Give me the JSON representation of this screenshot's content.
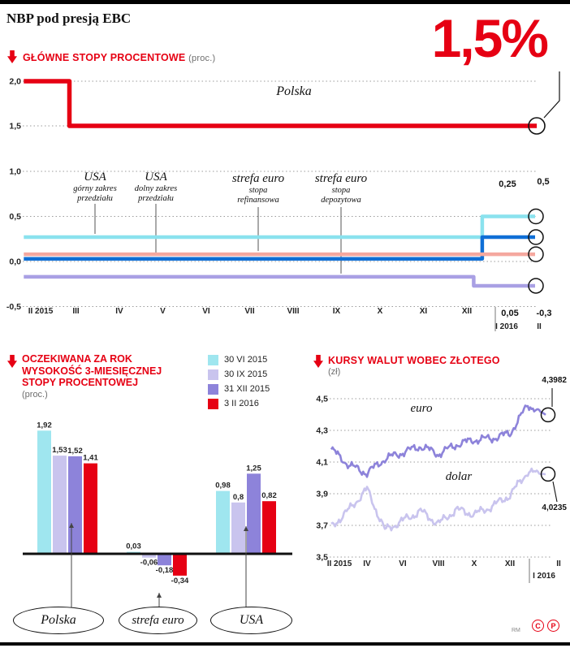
{
  "header": {
    "title": "NBP pod presją EBC",
    "big_rate": "1,5%"
  },
  "rates_section": {
    "heading": "GŁÓWNE STOPY PROCENTOWE",
    "unit": "(proc.)"
  },
  "expectations_section": {
    "heading_lines": [
      "OCZEKIWANA ZA ROK",
      "WYSOKOŚĆ 3-MIESIĘCZNEJ",
      "STOPY PROCENTOWEJ"
    ],
    "unit": "(proc.)"
  },
  "currency_section": {
    "heading": "KURSY WALUT WOBEC ZŁOTEGO",
    "unit": "(zł)"
  },
  "footer": {
    "credit": "RM",
    "copyright_c": "C",
    "copyright_p": "P"
  },
  "chart_data": [
    {
      "id": "polska_rate",
      "type": "line",
      "title": "GŁÓWNE STOPY PROCENTOWE (proc.)",
      "series_name": "Polska",
      "color": "#e60013",
      "yticks": [
        "2,0",
        "1,5"
      ],
      "ytick_values": [
        2.0,
        1.5
      ],
      "x_range": [
        "II 2015",
        "II 2016"
      ],
      "values": {
        "start": 2.0,
        "after_march_2015": 1.5
      },
      "plot": [
        [
          -0.2,
          2.0
        ],
        [
          0.85,
          2.0
        ],
        [
          0.85,
          1.5
        ],
        [
          12.05,
          1.5
        ]
      ],
      "end_label": "1,5%"
    },
    {
      "id": "foreign_rates",
      "type": "line",
      "yticks": [
        "1,0",
        "0,5",
        "0,0",
        "-0,5"
      ],
      "ytick_values": [
        1.0,
        0.5,
        0.0,
        -0.5
      ],
      "x_labels": [
        "II 2015",
        "III",
        "IV",
        "V",
        "VI",
        "VII",
        "VIII",
        "IX",
        "X",
        "XI",
        "XII"
      ],
      "x_labels_row2": [
        "I 2016",
        "II"
      ],
      "series": [
        {
          "title": "USA",
          "sub": "górny zakres przedziału",
          "color": "#8ae2ee",
          "values": {
            "before": 0.25,
            "after": 0.5
          },
          "plot": [
            [
              -0.2,
              0.27
            ],
            [
              10.45,
              0.27
            ],
            [
              10.45,
              0.5
            ],
            [
              12,
              0.5
            ]
          ],
          "end_label": "0,5"
        },
        {
          "title": "USA",
          "sub": "dolny zakres przedziału",
          "color": "#0f6fd6",
          "values": {
            "before": 0.0,
            "after": 0.25
          },
          "plot": [
            [
              -0.2,
              0.03
            ],
            [
              10.45,
              0.03
            ],
            [
              10.45,
              0.27
            ],
            [
              12,
              0.27
            ]
          ],
          "end_label": "0,25"
        },
        {
          "title": "strefa euro",
          "sub": "stopa refinansowa",
          "color": "#f5a89f",
          "values": {
            "before": 0.05,
            "after": 0.05
          },
          "plot": [
            [
              -0.2,
              0.08
            ],
            [
              12,
              0.08
            ]
          ],
          "end_label": "0,05"
        },
        {
          "title": "strefa euro",
          "sub": "stopa depozytowa",
          "color": "#a9a0e4",
          "values": {
            "before": -0.2,
            "after": -0.3
          },
          "plot": [
            [
              -0.2,
              -0.17
            ],
            [
              10.2,
              -0.17
            ],
            [
              10.2,
              -0.27
            ],
            [
              12,
              -0.27
            ]
          ],
          "end_label": "-0,3"
        }
      ]
    },
    {
      "id": "expected_3m_rate",
      "type": "bar",
      "categories": [
        "Polska",
        "strefa euro",
        "USA"
      ],
      "series": [
        {
          "name": "30 VI 2015",
          "color": "#9fe6ef",
          "values": [
            1.92,
            0.03,
            0.98
          ]
        },
        {
          "name": "30 IX 2015",
          "color": "#c9c4ee",
          "values": [
            1.53,
            -0.06,
            0.8
          ]
        },
        {
          "name": "31 XII 2015",
          "color": "#8d83da",
          "values": [
            1.52,
            -0.18,
            1.25
          ]
        },
        {
          "name": "3 II 2016",
          "color": "#e60013",
          "values": [
            1.41,
            -0.34,
            0.82
          ]
        }
      ],
      "value_labels": [
        [
          "1,92",
          "1,53",
          "1,52",
          "1,41"
        ],
        [
          "0,03",
          "-0,06",
          "-0,18",
          "-0,34"
        ],
        [
          "0,98",
          "0,8",
          "1,25",
          "0,82"
        ]
      ]
    },
    {
      "id": "fx_rates",
      "type": "line",
      "yticks": [
        "4,5",
        "4,3",
        "4,1",
        "3,9",
        "3,7",
        "3,5"
      ],
      "ytick_values": [
        4.5,
        4.3,
        4.1,
        3.9,
        3.7,
        3.5
      ],
      "x_labels": [
        "II 2015",
        "IV",
        "VI",
        "VIII",
        "X",
        "XII"
      ],
      "x_label_end": "II",
      "x_label_row2": "I 2016",
      "series": [
        {
          "name": "euro",
          "color": "#8d83da",
          "monthly": [
            4.18,
            4.08,
            4.03,
            4.12,
            4.16,
            4.2,
            4.15,
            4.21,
            4.24,
            4.25,
            4.28,
            4.46,
            4.3982
          ],
          "end_label": "4,3982",
          "end_value": 4.3982
        },
        {
          "name": "dolar",
          "color": "#c9c4ee",
          "monthly": [
            3.69,
            3.8,
            3.93,
            3.67,
            3.73,
            3.79,
            3.71,
            3.8,
            3.77,
            3.82,
            3.89,
            4.04,
            4.0235
          ],
          "end_label": "4,0235",
          "end_value": 4.0235
        }
      ]
    }
  ]
}
